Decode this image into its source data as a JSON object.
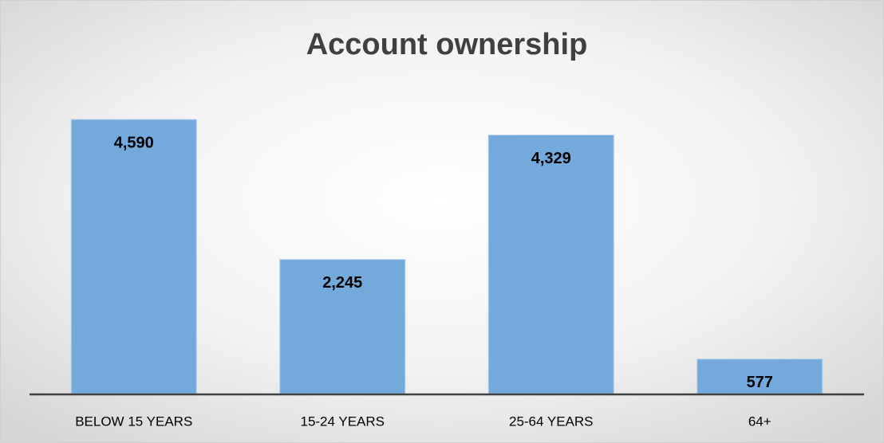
{
  "chart_data": {
    "type": "bar",
    "title": "Account ownership",
    "categories": [
      "BELOW 15 YEARS",
      "15-24 YEARS",
      "25-64 YEARS",
      "64+"
    ],
    "values": [
      4590,
      2245,
      4329,
      577
    ],
    "value_labels": [
      "4,590",
      "2,245",
      "4,329",
      "577"
    ],
    "color": "#74a9db"
  }
}
